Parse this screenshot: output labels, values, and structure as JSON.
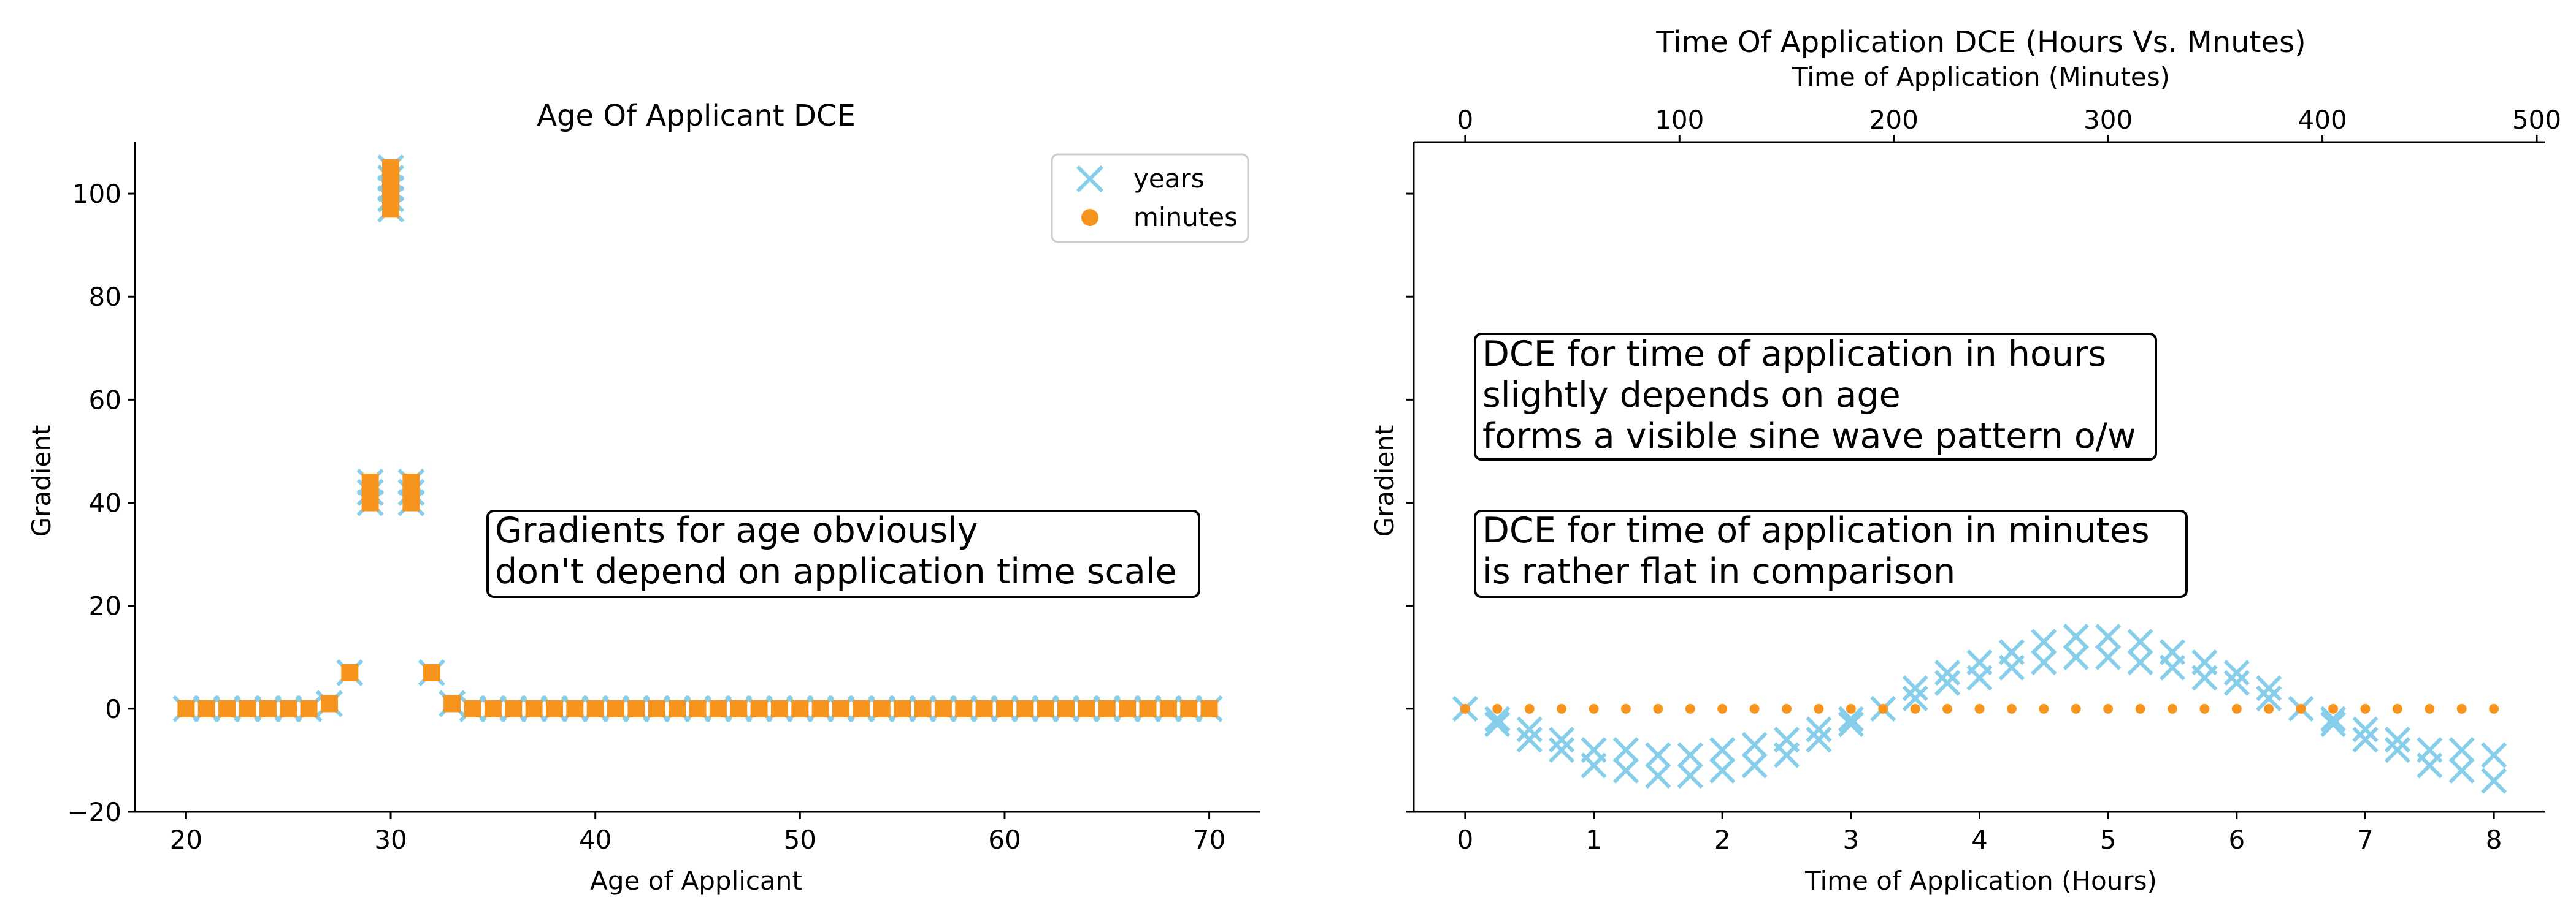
{
  "colors": {
    "years": "#87CEEB",
    "minutes": "#F7941D"
  },
  "chart_data": [
    {
      "type": "scatter",
      "title": "Age Of Applicant DCE",
      "xlabel": "Age of Applicant",
      "ylabel": "Gradient",
      "xlim": [
        17.5,
        72.5
      ],
      "ylim": [
        -20,
        110
      ],
      "xticks": [
        20,
        30,
        40,
        50,
        60,
        70
      ],
      "yticks": [
        -20,
        0,
        20,
        40,
        60,
        80,
        100
      ],
      "legend": {
        "placement": "upper-right",
        "entries": [
          "years",
          "minutes"
        ]
      },
      "annotation": [
        "Gradients for age obviously",
        "don't depend on application time scale"
      ],
      "series": [
        {
          "name": "years",
          "marker": "x",
          "x": [
            20,
            21,
            22,
            23,
            24,
            25,
            26,
            27,
            28,
            29,
            29,
            29,
            30,
            30,
            30,
            30,
            30,
            31,
            31,
            31,
            32,
            33,
            34,
            35,
            36,
            37,
            38,
            39,
            40,
            41,
            42,
            43,
            44,
            45,
            46,
            47,
            48,
            49,
            50,
            51,
            52,
            53,
            54,
            55,
            56,
            57,
            58,
            59,
            60,
            61,
            62,
            63,
            64,
            65,
            66,
            67,
            68,
            69,
            70
          ],
          "values": [
            0,
            0,
            0,
            0,
            0,
            0,
            0,
            1,
            7,
            40,
            42,
            44,
            97,
            99,
            101,
            103,
            105,
            40,
            42,
            44,
            7,
            1,
            0,
            0,
            0,
            0,
            0,
            0,
            0,
            0,
            0,
            0,
            0,
            0,
            0,
            0,
            0,
            0,
            0,
            0,
            0,
            0,
            0,
            0,
            0,
            0,
            0,
            0,
            0,
            0,
            0,
            0,
            0,
            0,
            0,
            0,
            0,
            0,
            0
          ]
        },
        {
          "name": "minutes",
          "marker": "o",
          "x": [
            20,
            21,
            22,
            23,
            24,
            25,
            26,
            27,
            28,
            29,
            29,
            29,
            30,
            30,
            30,
            30,
            30,
            31,
            31,
            31,
            32,
            33,
            34,
            35,
            36,
            37,
            38,
            39,
            40,
            41,
            42,
            43,
            44,
            45,
            46,
            47,
            48,
            49,
            50,
            51,
            52,
            53,
            54,
            55,
            56,
            57,
            58,
            59,
            60,
            61,
            62,
            63,
            64,
            65,
            66,
            67,
            68,
            69,
            70
          ],
          "values": [
            0,
            0,
            0,
            0,
            0,
            0,
            0,
            1,
            7,
            40,
            42,
            44,
            97,
            99,
            101,
            103,
            105,
            40,
            42,
            44,
            7,
            1,
            0,
            0,
            0,
            0,
            0,
            0,
            0,
            0,
            0,
            0,
            0,
            0,
            0,
            0,
            0,
            0,
            0,
            0,
            0,
            0,
            0,
            0,
            0,
            0,
            0,
            0,
            0,
            0,
            0,
            0,
            0,
            0,
            0,
            0,
            0,
            0,
            0
          ]
        }
      ]
    },
    {
      "type": "scatter",
      "title": "Time Of Application DCE (Hours Vs. Mnutes)",
      "xlabel": "Time of Application (Hours)",
      "x2label": "Time of Application (Minutes)",
      "ylabel": "Gradient",
      "xlim": [
        -0.4,
        8.4
      ],
      "x2lim": [
        -24,
        504
      ],
      "ylim": [
        -20,
        110
      ],
      "xticks": [
        0,
        1,
        2,
        3,
        4,
        5,
        6,
        7,
        8
      ],
      "x2ticks": [
        0,
        100,
        200,
        300,
        400,
        500
      ],
      "annotations": [
        [
          "DCE for time of application in hours",
          "slightly depends on age",
          "forms a visible sine wave pattern o/w"
        ],
        [
          "DCE for time of application in minutes",
          "is rather flat in comparison"
        ]
      ],
      "series": [
        {
          "name": "years",
          "marker": "x",
          "x": [
            0,
            0.25,
            0.25,
            0.5,
            0.5,
            0.75,
            0.75,
            1,
            1,
            1.25,
            1.25,
            1.5,
            1.5,
            1.75,
            1.75,
            2,
            2,
            2.25,
            2.25,
            2.5,
            2.5,
            2.75,
            2.75,
            3,
            3,
            3.25,
            3.5,
            3.5,
            3.75,
            3.75,
            4,
            4,
            4.25,
            4.25,
            4.5,
            4.5,
            4.75,
            4.75,
            5,
            5,
            5.25,
            5.25,
            5.5,
            5.5,
            5.75,
            5.75,
            6,
            6,
            6.25,
            6.25,
            6.5,
            6.75,
            6.75,
            7,
            7,
            7.25,
            7.25,
            7.5,
            7.5,
            7.75,
            7.75,
            8,
            8
          ],
          "values": [
            0,
            -2,
            -3,
            -4,
            -6,
            -6,
            -8,
            -8,
            -11,
            -8,
            -12,
            -9,
            -13,
            -9,
            -13,
            -8,
            -12,
            -7,
            -11,
            -6,
            -9,
            -4,
            -6,
            -2,
            -3,
            0,
            2,
            4,
            5,
            7,
            6,
            9,
            8,
            11,
            9,
            13,
            10,
            14,
            10,
            14,
            9,
            13,
            8,
            11,
            6,
            9,
            5,
            7,
            2,
            4,
            0,
            -2,
            -3,
            -4,
            -6,
            -6,
            -8,
            -8,
            -11,
            -8,
            -12,
            -9,
            -14
          ]
        },
        {
          "name": "minutes",
          "marker": "o",
          "x": [
            0,
            15,
            30,
            45,
            60,
            75,
            90,
            105,
            120,
            135,
            150,
            165,
            180,
            195,
            210,
            225,
            240,
            255,
            270,
            285,
            300,
            315,
            330,
            345,
            360,
            375,
            390,
            405,
            420,
            435,
            450,
            465,
            480
          ],
          "values": [
            0,
            0,
            0,
            0,
            0,
            0,
            0,
            0,
            0,
            0,
            0,
            0,
            0,
            0,
            0,
            0,
            0,
            0,
            0,
            0,
            0,
            0,
            0,
            0,
            0,
            0,
            0,
            0,
            0,
            0,
            0,
            0,
            0
          ]
        }
      ]
    }
  ]
}
